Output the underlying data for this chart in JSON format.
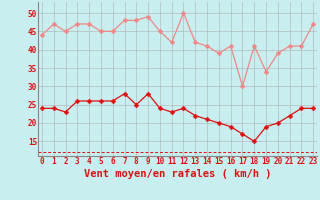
{
  "x": [
    0,
    1,
    2,
    3,
    4,
    5,
    6,
    7,
    8,
    9,
    10,
    11,
    12,
    13,
    14,
    15,
    16,
    17,
    18,
    19,
    20,
    21,
    22,
    23
  ],
  "rafales": [
    44,
    47,
    45,
    47,
    47,
    45,
    45,
    48,
    48,
    49,
    45,
    42,
    50,
    42,
    41,
    39,
    41,
    30,
    41,
    34,
    39,
    41,
    41,
    47
  ],
  "moyen": [
    24,
    24,
    23,
    26,
    26,
    26,
    26,
    28,
    25,
    28,
    24,
    23,
    24,
    22,
    21,
    20,
    19,
    17,
    15,
    19,
    20,
    22,
    24,
    24
  ],
  "dashed_y": 12,
  "bg_color": "#c8eef0",
  "grid_color": "#b0b0b0",
  "line_color_rafales": "#f08888",
  "line_color_moyen": "#dd1111",
  "dashed_color": "#dd1111",
  "ylabel_vals": [
    15,
    20,
    25,
    30,
    35,
    40,
    45,
    50
  ],
  "xlabel": "Vent moyen/en rafales ( km/h )",
  "xlabel_color": "#dd1111",
  "ylim": [
    11,
    53
  ],
  "xlim": [
    -0.3,
    23.3
  ],
  "marker_size": 2.5,
  "linewidth": 0.9,
  "tick_fontsize": 5.5,
  "xlabel_fontsize": 7.5
}
